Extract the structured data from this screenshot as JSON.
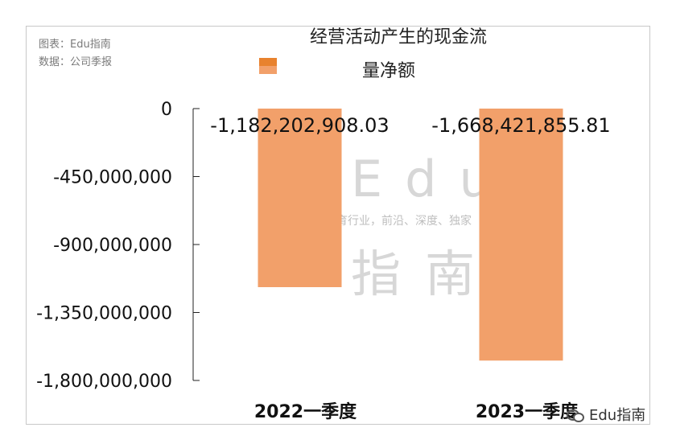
{
  "header": {
    "chart_source": "图表：Edu指南",
    "data_source": "数据：公司季报"
  },
  "watermark": {
    "edu": "Edu",
    "tagline": "教育行业，前沿、深度、独家",
    "cn": "指南"
  },
  "brand": {
    "label": "Edu指南",
    "icon": "wechat-icon"
  },
  "colors": {
    "bar": "#F2A06A",
    "legend_top": "#E8822E",
    "legend_bottom": "#F2A06A"
  },
  "chart_data": {
    "type": "bar",
    "title": "经营活动产生的现金流",
    "categories": [
      "2022一季度",
      "2023一季度"
    ],
    "series": [
      {
        "name": "量净额",
        "values": [
          -1182202908.03,
          -1668421855.81
        ],
        "data_labels": [
          "-1,182,202,908.03",
          "-1,668,421,855.81"
        ]
      }
    ],
    "yticks": [
      0,
      -450000000,
      -900000000,
      -1350000000,
      -1800000000
    ],
    "ytick_labels": [
      "0",
      "-450,000,000",
      "-900,000,000",
      "-1,350,000,000",
      "-1,800,000,000"
    ],
    "ylim": [
      -1800000000,
      0
    ],
    "legend_position": "top",
    "grid": false
  }
}
